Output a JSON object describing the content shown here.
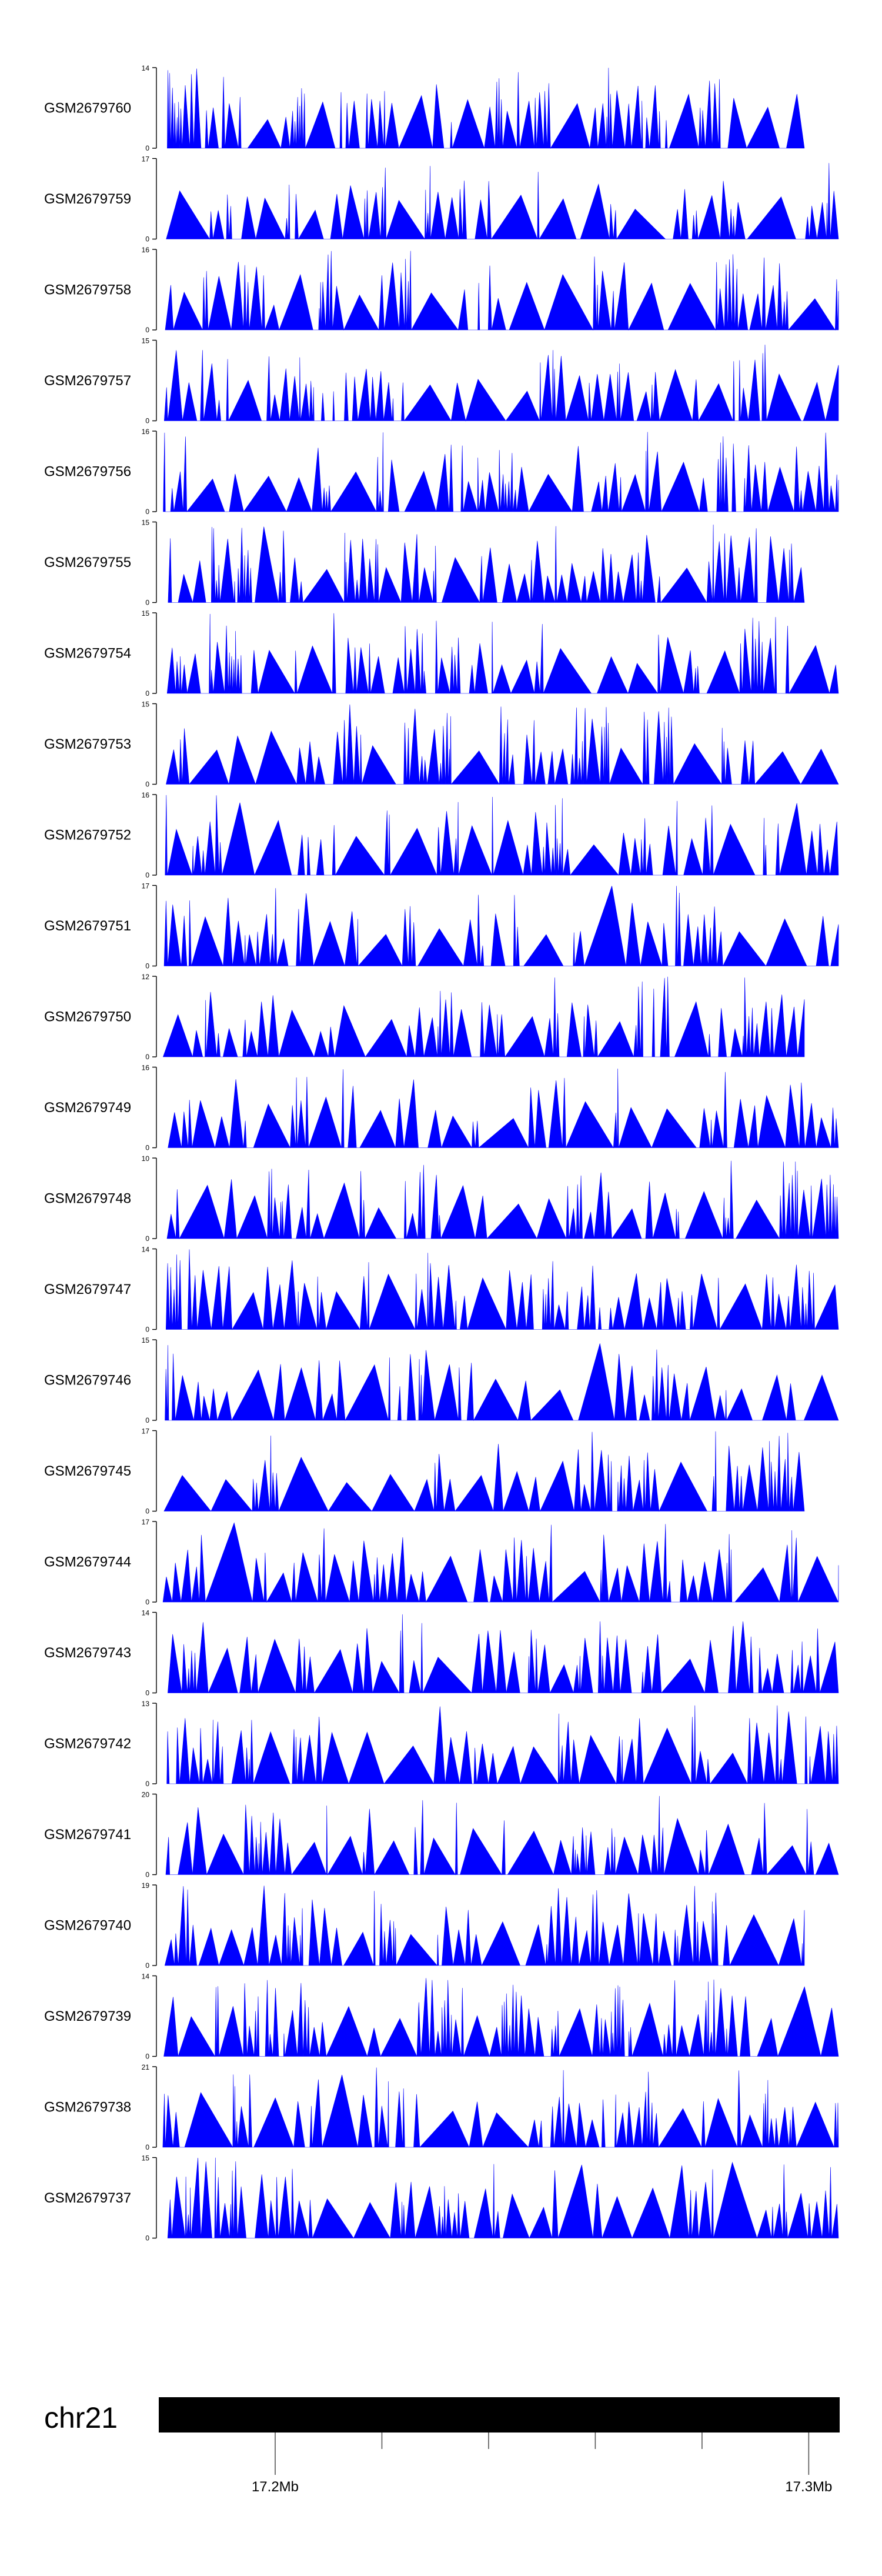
{
  "colors": {
    "signal": "#0000ff",
    "axis": "#000000",
    "ideogram": "#000000"
  },
  "chart_data": {
    "type": "area",
    "chromosome": "chr21",
    "x_range_mb": [
      17.1784,
      17.3058
    ],
    "axis_ticks": [
      {
        "position_mb": 17.2,
        "label": "17.2Mb"
      },
      {
        "position_mb": 17.22,
        "label": ""
      },
      {
        "position_mb": 17.24,
        "label": ""
      },
      {
        "position_mb": 17.26,
        "label": ""
      },
      {
        "position_mb": 17.28,
        "label": ""
      },
      {
        "position_mb": 17.3,
        "label": "17.3Mb"
      }
    ],
    "tracks": [
      {
        "name": "GSM2679760",
        "ylim": [
          0,
          14
        ]
      },
      {
        "name": "GSM2679759",
        "ylim": [
          0,
          17
        ]
      },
      {
        "name": "GSM2679758",
        "ylim": [
          0,
          16
        ]
      },
      {
        "name": "GSM2679757",
        "ylim": [
          0,
          15
        ]
      },
      {
        "name": "GSM2679756",
        "ylim": [
          0,
          16
        ]
      },
      {
        "name": "GSM2679755",
        "ylim": [
          0,
          15
        ]
      },
      {
        "name": "GSM2679754",
        "ylim": [
          0,
          15
        ]
      },
      {
        "name": "GSM2679753",
        "ylim": [
          0,
          15
        ]
      },
      {
        "name": "GSM2679752",
        "ylim": [
          0,
          16
        ]
      },
      {
        "name": "GSM2679751",
        "ylim": [
          0,
          17
        ]
      },
      {
        "name": "GSM2679750",
        "ylim": [
          0,
          12
        ]
      },
      {
        "name": "GSM2679749",
        "ylim": [
          0,
          16
        ]
      },
      {
        "name": "GSM2679748",
        "ylim": [
          0,
          10
        ]
      },
      {
        "name": "GSM2679747",
        "ylim": [
          0,
          14
        ]
      },
      {
        "name": "GSM2679746",
        "ylim": [
          0,
          15
        ]
      },
      {
        "name": "GSM2679745",
        "ylim": [
          0,
          17
        ]
      },
      {
        "name": "GSM2679744",
        "ylim": [
          0,
          17
        ]
      },
      {
        "name": "GSM2679743",
        "ylim": [
          0,
          14
        ]
      },
      {
        "name": "GSM2679742",
        "ylim": [
          0,
          13
        ]
      },
      {
        "name": "GSM2679741",
        "ylim": [
          0,
          20
        ]
      },
      {
        "name": "GSM2679740",
        "ylim": [
          0,
          19
        ]
      },
      {
        "name": "GSM2679739",
        "ylim": [
          0,
          14
        ]
      },
      {
        "name": "GSM2679738",
        "ylim": [
          0,
          21
        ]
      },
      {
        "name": "GSM2679737",
        "ylim": [
          0,
          15
        ]
      }
    ]
  }
}
